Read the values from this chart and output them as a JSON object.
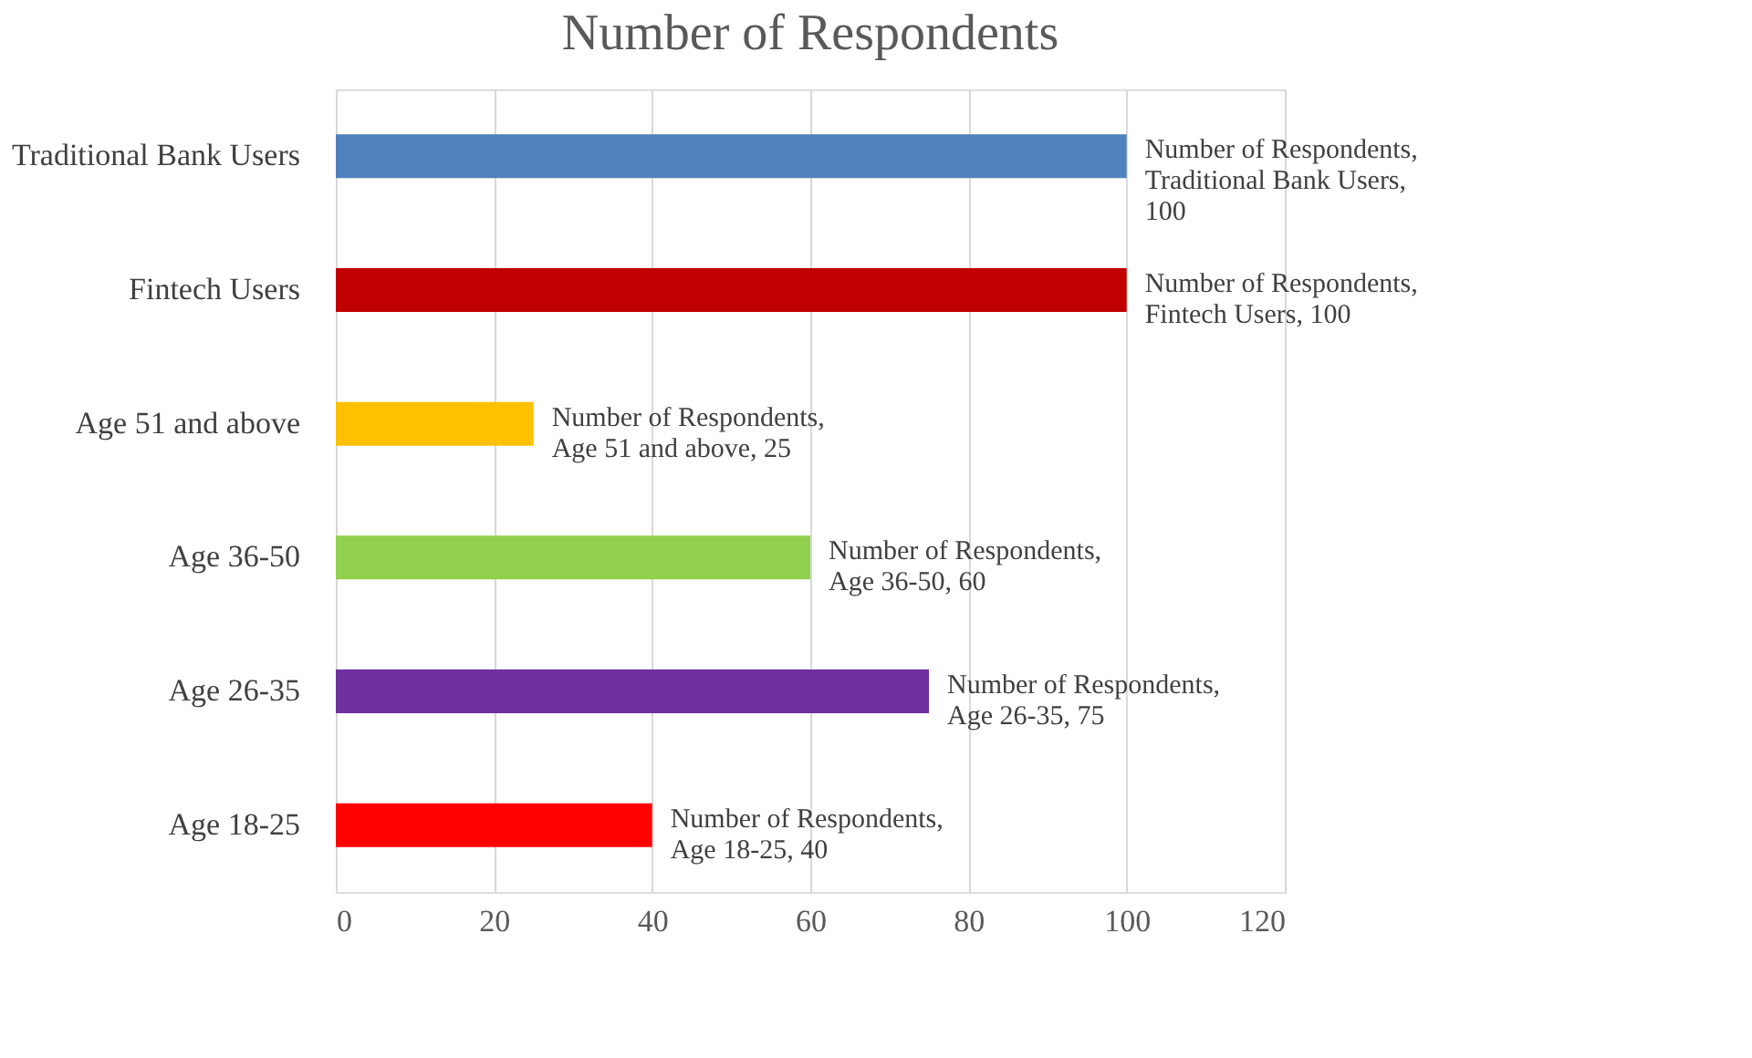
{
  "chart_data": {
    "type": "bar",
    "orientation": "horizontal",
    "title": "Number of Respondents",
    "categories": [
      "Traditional Bank Users",
      "Fintech Users",
      "Age 51 and above",
      "Age 36-50",
      "Age 26-35",
      "Age 18-25"
    ],
    "values": [
      100,
      100,
      25,
      60,
      75,
      40
    ],
    "colors": [
      "#4f81bd",
      "#c00000",
      "#ffc000",
      "#92d050",
      "#7030a0",
      "#ff0000"
    ],
    "value_labels": [
      "Number of Respondents, Traditional Bank Users, 100",
      "Number of Respondents, Fintech Users, 100",
      "Number of Respondents, Age 51 and above, 25",
      "Number of Respondents, Age 36-50, 60",
      "Number of Respondents, Age 26-35, 75",
      "Number of Respondents, Age 18-25, 40"
    ],
    "xlim": [
      0,
      120
    ],
    "xticks": [
      0,
      20,
      40,
      60,
      80,
      100,
      120
    ],
    "grid": "x"
  }
}
